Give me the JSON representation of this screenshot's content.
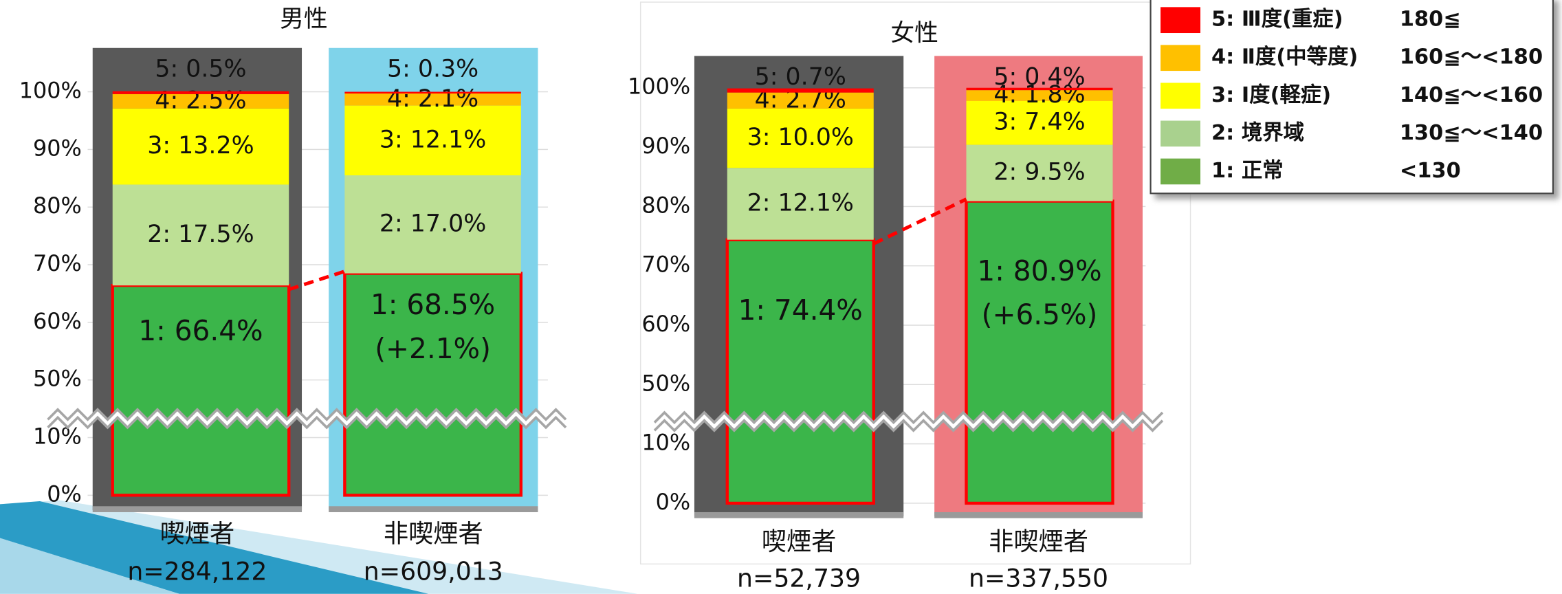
{
  "legend": [
    {
      "name": "5: Ⅲ度(重症)",
      "range": "180≦",
      "color": "#ff0000"
    },
    {
      "name": "4: Ⅱ度(中等度)",
      "range": "160≦～<180",
      "color": "#ffc000"
    },
    {
      "name": "3: Ⅰ度(軽症)",
      "range": "140≦～<160",
      "color": "#ffff00"
    },
    {
      "name": "2: 境界域",
      "range": "130≦～<140",
      "color": "#a9d18e"
    },
    {
      "name": "1: 正常",
      "range": "<130",
      "color": "#70ad47"
    }
  ],
  "chart_data": [
    {
      "type": "bar",
      "stacked": true,
      "title": "男性",
      "categories": [
        "喫煙者",
        "非喫煙者"
      ],
      "sample_sizes": [
        "n=284,122",
        "n=609,013"
      ],
      "category_colors": [
        "#595959",
        "#7fd3ea"
      ],
      "ylim": [
        0,
        100
      ],
      "axis_break": [
        10,
        50
      ],
      "yticks": [
        {
          "value": 0,
          "label": "0%"
        },
        {
          "value": 10,
          "label": "10%"
        },
        {
          "value": 50,
          "label": "50%"
        },
        {
          "value": 60,
          "label": "60%"
        },
        {
          "value": 70,
          "label": "70%"
        },
        {
          "value": 80,
          "label": "80%"
        },
        {
          "value": 90,
          "label": "90%"
        },
        {
          "value": 100,
          "label": "100%"
        }
      ],
      "series": [
        {
          "color": "#3bb54a",
          "values": [
            66.4,
            68.5
          ],
          "value_labels": [
            "1: 66.4%",
            "1: 68.5%"
          ]
        },
        {
          "color": "#bde095",
          "values": [
            17.5,
            17.0
          ],
          "value_labels": [
            "2: 17.5%",
            "2: 17.0%"
          ]
        },
        {
          "color": "#ffff00",
          "values": [
            13.2,
            12.1
          ],
          "value_labels": [
            "3: 13.2%",
            "3: 12.1%"
          ]
        },
        {
          "color": "#ffc000",
          "values": [
            2.5,
            2.1
          ],
          "value_labels": [
            "4: 2.5%",
            "4: 2.1%"
          ]
        },
        {
          "color": "#ff0000",
          "values": [
            0.5,
            0.3
          ],
          "value_labels": [
            "5: 0.5%",
            "5: 0.3%"
          ]
        }
      ],
      "annotations": [
        {
          "category": 1,
          "text": "(+2.1%)"
        }
      ]
    },
    {
      "type": "bar",
      "stacked": true,
      "title": "女性",
      "categories": [
        "喫煙者",
        "非喫煙者"
      ],
      "sample_sizes": [
        "n=52,739",
        "n=337,550"
      ],
      "category_colors": [
        "#595959",
        "#ee7a80"
      ],
      "ylim": [
        0,
        100
      ],
      "axis_break": [
        10,
        50
      ],
      "yticks": [
        {
          "value": 0,
          "label": "0%"
        },
        {
          "value": 10,
          "label": "10%"
        },
        {
          "value": 50,
          "label": "50%"
        },
        {
          "value": 60,
          "label": "60%"
        },
        {
          "value": 70,
          "label": "70%"
        },
        {
          "value": 80,
          "label": "80%"
        },
        {
          "value": 90,
          "label": "90%"
        },
        {
          "value": 100,
          "label": "100%"
        }
      ],
      "series": [
        {
          "color": "#3bb54a",
          "values": [
            74.4,
            80.9
          ],
          "value_labels": [
            "1: 74.4%",
            "1: 80.9%"
          ]
        },
        {
          "color": "#bde095",
          "values": [
            12.1,
            9.5
          ],
          "value_labels": [
            "2: 12.1%",
            "2: 9.5%"
          ]
        },
        {
          "color": "#ffff00",
          "values": [
            10.0,
            7.4
          ],
          "value_labels": [
            "3: 10.0%",
            "3: 7.4%"
          ]
        },
        {
          "color": "#ffc000",
          "values": [
            2.7,
            1.8
          ],
          "value_labels": [
            "4: 2.7%",
            "4: 1.8%"
          ]
        },
        {
          "color": "#ff0000",
          "values": [
            0.7,
            0.4
          ],
          "value_labels": [
            "5: 0.7%",
            "5: 0.4%"
          ]
        }
      ],
      "annotations": [
        {
          "category": 1,
          "text": "(+6.5%)"
        }
      ]
    }
  ]
}
